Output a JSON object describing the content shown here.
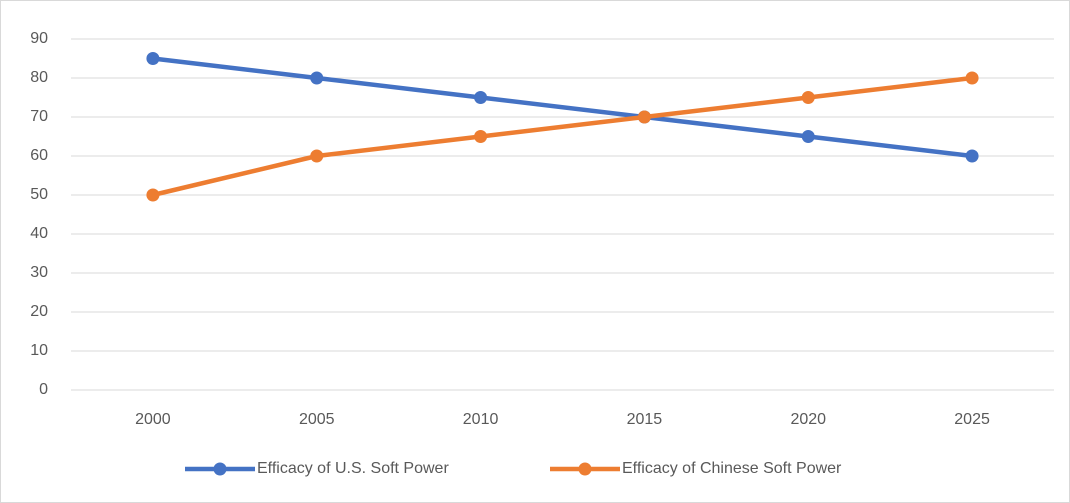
{
  "chart_data": {
    "type": "line",
    "categories": [
      "2000",
      "2005",
      "2010",
      "2015",
      "2020",
      "2025"
    ],
    "series": [
      {
        "name": "Efficacy of U.S. Soft Power",
        "color": "#4472c4",
        "values": [
          85,
          80,
          75,
          70,
          65,
          60
        ]
      },
      {
        "name": "Efficacy of Chinese Soft Power",
        "color": "#ed7d31",
        "values": [
          50,
          60,
          65,
          70,
          75,
          80
        ]
      }
    ],
    "ylim": [
      0,
      90
    ],
    "yticks": [
      0,
      10,
      20,
      30,
      40,
      50,
      60,
      70,
      80,
      90
    ],
    "grid": true,
    "legend": "bottom"
  }
}
